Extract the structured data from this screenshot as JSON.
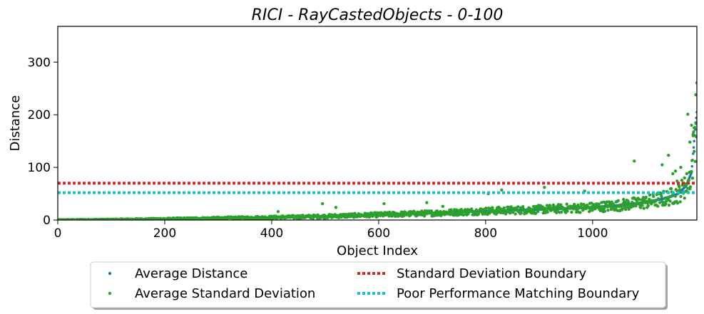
{
  "chart_data": {
    "type": "scatter",
    "title": "RICI - RayCastedObjects - 0-100",
    "xlabel": "Object Index",
    "ylabel": "Distance",
    "xlim": [
      0,
      1195
    ],
    "ylim": [
      0,
      368
    ],
    "xticks": [
      0,
      200,
      400,
      600,
      800,
      1000
    ],
    "yticks": [
      0,
      100,
      200,
      300
    ],
    "grid": false,
    "legend_position": "bottom-center",
    "series": [
      {
        "name": "Average Distance",
        "kind": "points",
        "color": "#1f77b4",
        "trend": {
          "n": 1195,
          "x_range": [
            0,
            1195
          ],
          "values_at": [
            [
              0,
              0
            ],
            [
              100,
              0.8
            ],
            [
              200,
              2
            ],
            [
              300,
              3.5
            ],
            [
              400,
              5
            ],
            [
              500,
              7
            ],
            [
              600,
              10
            ],
            [
              700,
              13
            ],
            [
              800,
              17
            ],
            [
              900,
              20
            ],
            [
              1000,
              24
            ],
            [
              1050,
              28
            ],
            [
              1100,
              34
            ],
            [
              1140,
              42
            ],
            [
              1160,
              50
            ],
            [
              1175,
              65
            ],
            [
              1185,
              90
            ],
            [
              1190,
              150
            ],
            [
              1195,
              205
            ]
          ]
        }
      },
      {
        "name": "Average Standard Deviation",
        "kind": "points",
        "color": "#2ca02c",
        "notable_points": [
          [
            412,
            16
          ],
          [
            495,
            31
          ],
          [
            520,
            24
          ],
          [
            610,
            31
          ],
          [
            690,
            33
          ],
          [
            720,
            26
          ],
          [
            805,
            50
          ],
          [
            830,
            57
          ],
          [
            910,
            62
          ],
          [
            985,
            55
          ],
          [
            1078,
            112
          ],
          [
            1130,
            105
          ],
          [
            1142,
            123
          ],
          [
            1150,
            88
          ],
          [
            1155,
            93
          ],
          [
            1158,
            74
          ],
          [
            1165,
            100
          ],
          [
            1172,
            80
          ],
          [
            1178,
            201
          ],
          [
            1182,
            148
          ],
          [
            1185,
            180
          ],
          [
            1188,
            160
          ],
          [
            1190,
            175
          ],
          [
            1193,
            238
          ]
        ]
      },
      {
        "name": "Standard Deviation Boundary",
        "kind": "hline",
        "y": 70,
        "color": "#d62728"
      },
      {
        "name": "Poor Performance Matching Boundary",
        "kind": "hline",
        "y": 52,
        "color": "#17becf"
      }
    ]
  }
}
